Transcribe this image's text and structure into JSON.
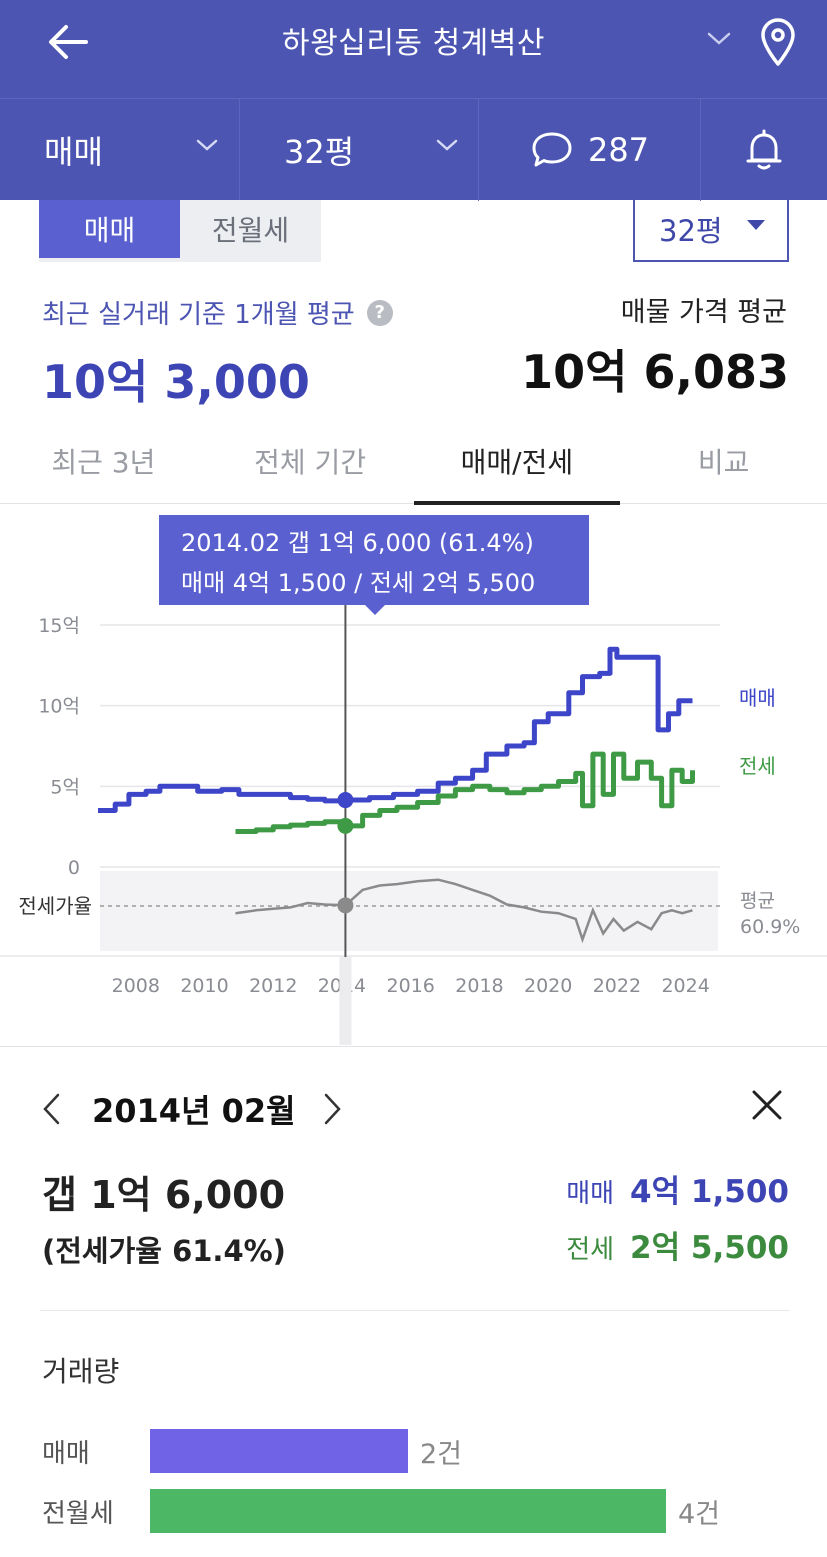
{
  "header": {
    "title": "하왕십리동 청계벽산",
    "filters": {
      "deal_type": "매매",
      "size": "32평",
      "comment_count": "287"
    }
  },
  "sub_toggle": {
    "options": [
      "매매",
      "전월세"
    ],
    "selected": "매매"
  },
  "size_select": {
    "value": "32평"
  },
  "summary": {
    "recent_avg_label": "최근 실거래 기준 1개월 평균",
    "recent_avg_value": "10억 3,000",
    "listing_avg_label": "매물 가격 평균",
    "listing_avg_value": "10억 6,083"
  },
  "tabs": [
    {
      "label": "최근 3년",
      "active": false
    },
    {
      "label": "전체 기간",
      "active": false
    },
    {
      "label": "매매/전세",
      "active": true
    },
    {
      "label": "비교",
      "active": false
    }
  ],
  "tooltip": {
    "line1": "2014.02  갭 1억 6,000 (61.4%)",
    "line2": "매매 4억 1,500 / 전세 2억 5,500"
  },
  "colors": {
    "brand": "#4c55b2",
    "sale": "#3d45c8",
    "jeonse": "#3e9a45",
    "ratio": "#8a8a8a"
  },
  "chart_data": {
    "type": "line",
    "ylabels": [
      "15억",
      "10억",
      "5억",
      "0"
    ],
    "ylim": [
      0,
      15
    ],
    "y_unit": "억",
    "xlabels": [
      "2008",
      "2010",
      "2012",
      "2014",
      "2016",
      "2018",
      "2020",
      "2022",
      "2024"
    ],
    "xlim": [
      2006.9,
      2025.0
    ],
    "selected_x": 2014.1,
    "series": [
      {
        "name": "매매",
        "values": [
          [
            2006.9,
            3.5
          ],
          [
            2007.4,
            3.9
          ],
          [
            2007.8,
            4.5
          ],
          [
            2008.3,
            4.7
          ],
          [
            2008.7,
            5.0
          ],
          [
            2009.3,
            5.0
          ],
          [
            2009.8,
            4.7
          ],
          [
            2010.5,
            4.8
          ],
          [
            2011.0,
            4.5
          ],
          [
            2011.8,
            4.5
          ],
          [
            2012.5,
            4.3
          ],
          [
            2013.0,
            4.2
          ],
          [
            2013.5,
            4.1
          ],
          [
            2014.1,
            4.15
          ],
          [
            2014.8,
            4.3
          ],
          [
            2015.5,
            4.5
          ],
          [
            2016.2,
            4.7
          ],
          [
            2016.8,
            5.2
          ],
          [
            2017.3,
            5.5
          ],
          [
            2017.8,
            6.0
          ],
          [
            2018.2,
            7.0
          ],
          [
            2018.8,
            7.5
          ],
          [
            2019.3,
            7.7
          ],
          [
            2019.6,
            9.0
          ],
          [
            2020.0,
            9.5
          ],
          [
            2020.6,
            10.8
          ],
          [
            2021.0,
            11.8
          ],
          [
            2021.5,
            12.0
          ],
          [
            2021.8,
            13.5
          ],
          [
            2022.0,
            13.0
          ],
          [
            2022.5,
            13.0
          ],
          [
            2023.0,
            13.0
          ],
          [
            2023.2,
            8.5
          ],
          [
            2023.5,
            9.5
          ],
          [
            2023.8,
            10.3
          ],
          [
            2024.2,
            10.3
          ]
        ]
      },
      {
        "name": "전세",
        "values": [
          [
            2010.9,
            2.2
          ],
          [
            2011.5,
            2.3
          ],
          [
            2012.0,
            2.5
          ],
          [
            2012.5,
            2.6
          ],
          [
            2013.0,
            2.7
          ],
          [
            2013.5,
            2.8
          ],
          [
            2014.1,
            2.55
          ],
          [
            2014.6,
            3.2
          ],
          [
            2015.1,
            3.5
          ],
          [
            2015.6,
            3.7
          ],
          [
            2016.2,
            4.0
          ],
          [
            2016.8,
            4.4
          ],
          [
            2017.3,
            4.8
          ],
          [
            2017.8,
            5.0
          ],
          [
            2018.3,
            4.8
          ],
          [
            2018.8,
            4.6
          ],
          [
            2019.3,
            4.8
          ],
          [
            2019.8,
            5.0
          ],
          [
            2020.3,
            5.3
          ],
          [
            2020.8,
            5.8
          ],
          [
            2021.0,
            3.8
          ],
          [
            2021.3,
            7.0
          ],
          [
            2021.6,
            4.5
          ],
          [
            2021.9,
            7.0
          ],
          [
            2022.2,
            5.5
          ],
          [
            2022.6,
            6.5
          ],
          [
            2023.0,
            5.5
          ],
          [
            2023.3,
            3.8
          ],
          [
            2023.6,
            6.0
          ],
          [
            2023.9,
            5.3
          ],
          [
            2024.2,
            6.0
          ]
        ]
      }
    ],
    "ratio_series": {
      "name": "전세가율",
      "average_label": "평균",
      "average_value": "60.9%",
      "values": [
        [
          2010.9,
          56
        ],
        [
          2011.5,
          58
        ],
        [
          2012.0,
          59
        ],
        [
          2012.5,
          60
        ],
        [
          2013.0,
          63
        ],
        [
          2013.5,
          62
        ],
        [
          2014.1,
          61.4
        ],
        [
          2014.6,
          72
        ],
        [
          2015.1,
          75
        ],
        [
          2015.6,
          76
        ],
        [
          2016.2,
          78
        ],
        [
          2016.8,
          79
        ],
        [
          2017.3,
          76
        ],
        [
          2017.8,
          72
        ],
        [
          2018.3,
          68
        ],
        [
          2018.8,
          62
        ],
        [
          2019.3,
          60
        ],
        [
          2019.8,
          57
        ],
        [
          2020.3,
          56
        ],
        [
          2020.8,
          52
        ],
        [
          2021.0,
          38
        ],
        [
          2021.3,
          58
        ],
        [
          2021.6,
          42
        ],
        [
          2021.9,
          52
        ],
        [
          2022.2,
          44
        ],
        [
          2022.6,
          50
        ],
        [
          2023.0,
          45
        ],
        [
          2023.3,
          56
        ],
        [
          2023.6,
          58
        ],
        [
          2023.9,
          56
        ],
        [
          2024.2,
          58
        ]
      ]
    }
  },
  "detail": {
    "date": "2014년 02월",
    "gap_value": "갭 1억 6,000",
    "ratio_text": "(전세가율 61.4%)",
    "sale_label": "매매",
    "sale_value": "4억 1,500",
    "jeonse_label": "전세",
    "jeonse_value": "2억 5,500"
  },
  "volume": {
    "title": "거래량",
    "rows": [
      {
        "label": "매매",
        "count": 2,
        "count_text": "2건",
        "color": "#7063e6"
      },
      {
        "label": "전월세",
        "count": 4,
        "count_text": "4건",
        "color": "#4cb765"
      }
    ]
  }
}
